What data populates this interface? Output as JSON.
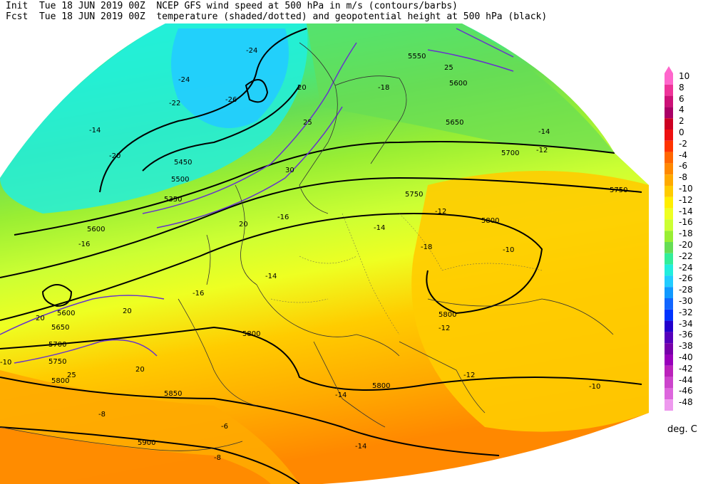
{
  "header": {
    "init_label": "Init",
    "init_time": "Tue 18 JUN 2019 00Z",
    "fcst_label": "Fcst",
    "fcst_time": "Tue 18 JUN 2019 00Z",
    "title_line1": "NCEP GFS wind speed at 500 hPa in m/s (contours/barbs)",
    "title_line2": "temperature (shaded/dotted) and geopotential height at 500 hPa (black)"
  },
  "colorbar": {
    "unit": "deg. C",
    "levels": [
      "10",
      "8",
      "6",
      "4",
      "2",
      "0",
      "-2",
      "-4",
      "-6",
      "-8",
      "-10",
      "-12",
      "-14",
      "-16",
      "-18",
      "-20",
      "-22",
      "-24",
      "-26",
      "-28",
      "-30",
      "-32",
      "-34",
      "-36",
      "-38",
      "-40",
      "-42",
      "-44",
      "-46",
      "-48"
    ],
    "colors": [
      "#ff66cc",
      "#ee3399",
      "#cc1177",
      "#aa0066",
      "#cc0022",
      "#ee1111",
      "#ff3300",
      "#ff6600",
      "#ff8800",
      "#ffaa00",
      "#ffcc00",
      "#ffee00",
      "#eeff22",
      "#ccff33",
      "#99ee33",
      "#66dd55",
      "#33ee99",
      "#22eedd",
      "#22ccff",
      "#1199ff",
      "#1166ff",
      "#0033ff",
      "#2200cc",
      "#5500bb",
      "#7700aa",
      "#9900bb",
      "#bb22bb",
      "#cc44cc",
      "#dd66dd",
      "#ee99ee"
    ]
  },
  "map_labels": {
    "heights": [
      "5550",
      "5600",
      "5650",
      "5700",
      "5750",
      "5800",
      "5450",
      "5500",
      "5350",
      "5600",
      "5750",
      "5800",
      "5800",
      "5850",
      "5900",
      "5650",
      "5700",
      "5750",
      "5800",
      "5600",
      "5800"
    ],
    "temps": [
      "-24",
      "-22",
      "-24",
      "-26",
      "-20",
      "-18",
      "-16",
      "-14",
      "-14",
      "-16",
      "-12",
      "-14",
      "-10",
      "-12",
      "-14",
      "-12",
      "-10",
      "-14",
      "-8",
      "-6",
      "-8",
      "-10",
      "-12",
      "-14",
      "-16",
      "-18"
    ],
    "winds": [
      "20",
      "25",
      "30",
      "20",
      "20",
      "25",
      "20",
      "20",
      "25"
    ]
  }
}
